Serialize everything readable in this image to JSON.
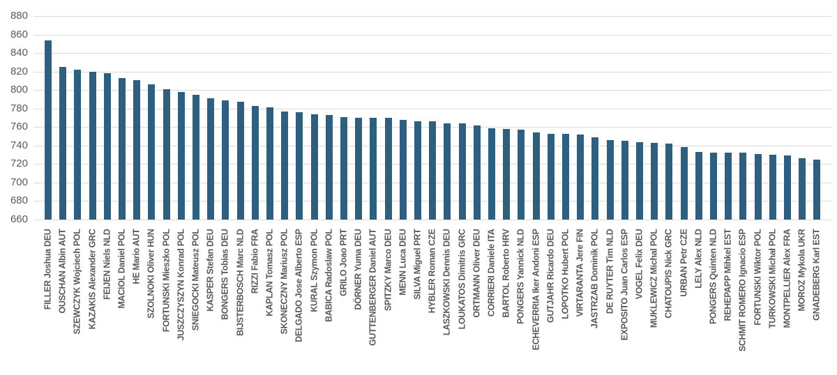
{
  "chart_data": {
    "type": "bar",
    "title": "",
    "xlabel": "",
    "ylabel": "",
    "ylim": [
      660,
      880
    ],
    "ytick_step": 20,
    "yticks": [
      660,
      680,
      700,
      720,
      740,
      760,
      780,
      800,
      820,
      840,
      860,
      880
    ],
    "grid": true,
    "legend_position": "none",
    "bar_color": "#2E5F7E",
    "gridline_color": "#D9D9D9",
    "ytick_label_color": "#595959",
    "category_label_color": "#595959",
    "background_color": "#FFFFFF",
    "categories": [
      "FILLER Joshua DEU",
      "OUSCHAN Albin AUT",
      "SZEWCZYK Wojciech POL",
      "KAZAKIS Alexander GRC",
      "FEIJEN Niels NLD",
      "MACIOL Daniel POL",
      "HE Mario AUT",
      "SZOLNOKI Oliver HUN",
      "FORTUNSKI Mieszko POL",
      "JUSZCZYSZYN Konrad POL",
      "SNIEGOCKI Mateusz POL",
      "KASPER Stefan DEU",
      "BONGERS Tobias DEU",
      "BIJSTERBOSCH Marc NLD",
      "RIZZI Fabio FRA",
      "KAPLAN Tomasz POL",
      "SKONECZNY Mariusz POL",
      "DELGADO Jose Alberto ESP",
      "KURAL Szymon POL",
      "BABICA Radoslaw POL",
      "GRILO Joao PRT",
      "DÖRNER Yuma DEU",
      "GUTTENBERGER Daniel AUT",
      "SPITZKY Marco DEU",
      "MENN Luca DEU",
      "SILVA Miguel PRT",
      "HYBLER Roman CZE",
      "LASZKOWSKI Dennis DEU",
      "LOUKATOS Dimitris GRC",
      "ORTMANN Oliver DEU",
      "CORRIERI Daniele ITA",
      "BARTOL Roberto HRV",
      "PONGERS Yannick NLD",
      "ECHEVERRIA Iker Andoni ESP",
      "GUTJAHR Ricardo DEU",
      "LOPOTKO Hubert POL",
      "VIRTARANTA Jere FIN",
      "JASTRZAB Dominik POL",
      "DE RUYTER Tim NLD",
      "EXPOSITO Juan Carlos ESP",
      "VOGEL Felix DEU",
      "MUKLEWICZ Michal POL",
      "CHATOUPIS Nick GRC",
      "URBAN Petr CZE",
      "LELY Alex NLD",
      "PONGERS Quinten NLD",
      "REHEPAPP Mihkel EST",
      "SCHMIT ROMERO Ignacio ESP",
      "FORTUNSKI Wiktor POL",
      "TURKOWSKI Michał POL",
      "MONTPELLIER Alex FRA",
      "MOROZ Mykola UKR",
      "GNADEBERG Karl EST"
    ],
    "values": [
      854,
      825,
      822,
      820,
      818,
      813,
      811,
      806,
      801,
      798,
      795,
      791,
      789,
      787,
      783,
      781,
      777,
      776,
      774,
      773,
      771,
      770,
      770,
      770,
      768,
      766,
      766,
      764,
      764,
      762,
      759,
      758,
      757,
      754,
      753,
      753,
      752,
      749,
      746,
      745,
      744,
      743,
      742,
      738,
      733,
      732,
      732,
      732,
      731,
      730,
      729,
      726,
      725
    ]
  }
}
